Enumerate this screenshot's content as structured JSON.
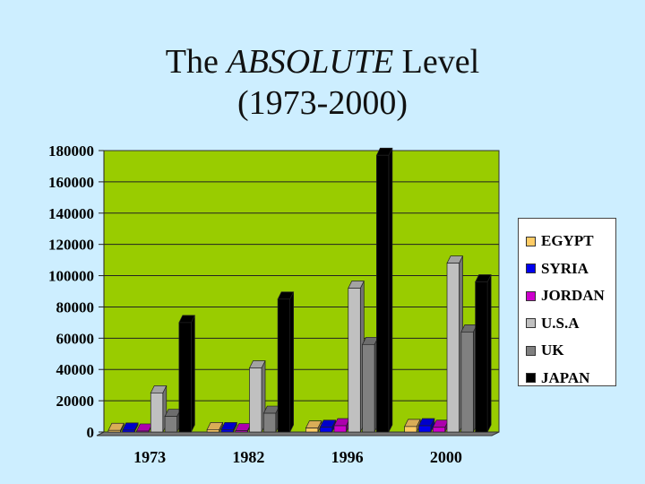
{
  "slide": {
    "title_pre": "The ",
    "title_em": "ABSOLUTE",
    "title_post": " Level",
    "title_line2": "(1973-2000)"
  },
  "colors": {
    "background": "#cdeeff",
    "plot_area": "#99cc00"
  },
  "chart_data": {
    "type": "bar",
    "style": "3d-clustered",
    "title": "The ABSOLUTE Level (1973-2000)",
    "categories": [
      "1973",
      "1982",
      "1996",
      "2000"
    ],
    "series": [
      {
        "name": "EGYPT",
        "color": "#ffcc66",
        "values": [
          1000,
          1500,
          2500,
          3500
        ]
      },
      {
        "name": "SYRIA",
        "color": "#0000ee",
        "values": [
          1200,
          1500,
          3000,
          4000
        ]
      },
      {
        "name": "JORDAN",
        "color": "#cc00cc",
        "values": [
          600,
          800,
          4000,
          3000
        ]
      },
      {
        "name": "U.S.A",
        "color": "#c0c0c0",
        "values": [
          25000,
          41000,
          92000,
          108000
        ]
      },
      {
        "name": "UK",
        "color": "#808080",
        "values": [
          10000,
          12000,
          56000,
          64000
        ]
      },
      {
        "name": "JAPAN",
        "color": "#000000",
        "values": [
          70000,
          85000,
          177000,
          96000
        ]
      }
    ],
    "y_ticks": [
      "180000",
      "160000",
      "140000",
      "120000",
      "100000",
      "80000",
      "60000",
      "40000",
      "20000",
      "0"
    ],
    "ylim": [
      0,
      180000
    ],
    "grid": true,
    "legend_position": "right"
  }
}
